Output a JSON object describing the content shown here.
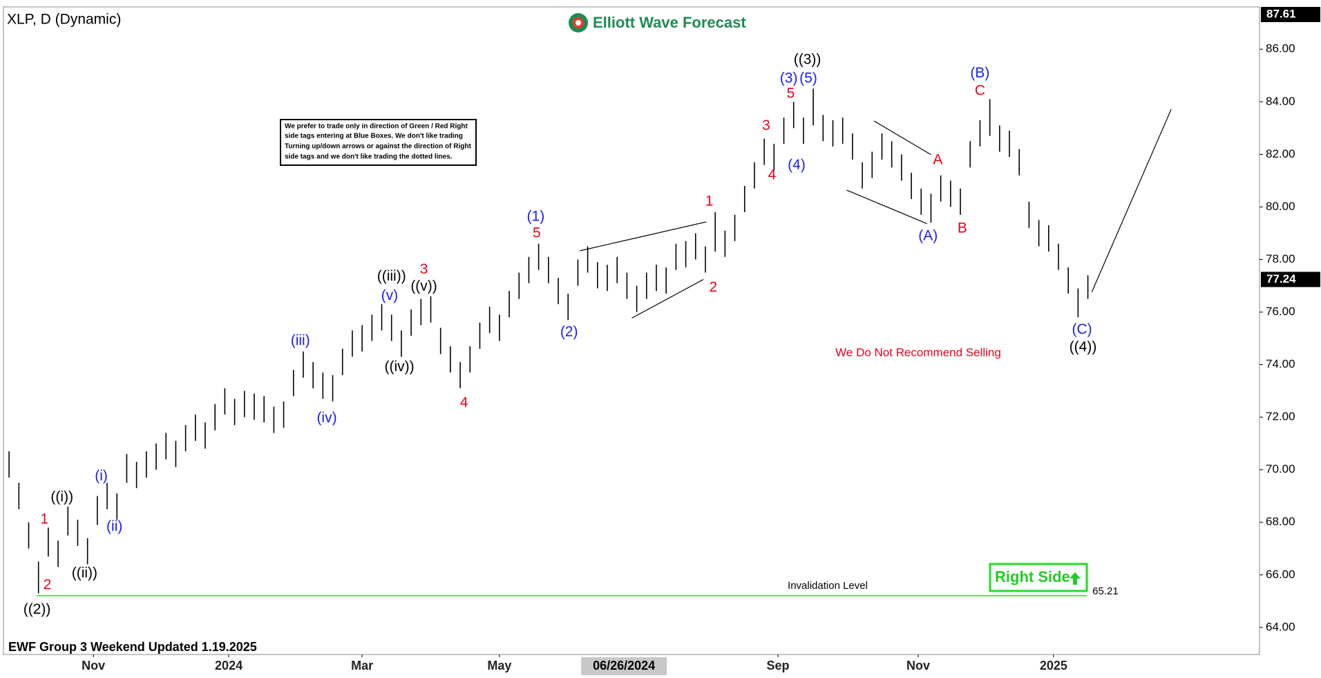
{
  "chart_data": {
    "type": "ohlc",
    "title": "XLP, D (Dynamic)",
    "brand": "Elliott Wave Forecast",
    "footer": "EWF Group 3 Weekend Updated 1.19.2025",
    "note": [
      "We prefer to trade only in direction of Green / Red Right",
      "side tags entering at Blue Boxes. We don't like trading",
      "Turning up/down arrows or against the direction of Right",
      "side tags and we don't like trading the dotted lines."
    ],
    "warning": "We Do Not Recommend Selling",
    "right_side": "Right Side",
    "bar_color": "#000000",
    "highs": [
      70.7,
      69.5,
      68,
      66.5,
      67.8,
      67.3,
      68.6,
      68.1,
      67.4,
      69,
      69.5,
      69.1,
      70.6,
      70.3,
      70.7,
      71,
      71.4,
      71.1,
      71.7,
      72.1,
      71.8,
      72.5,
      73.1,
      72.7,
      73,
      72.9,
      72.8,
      72.4,
      72.6,
      73.8,
      74.5,
      74.1,
      73.7,
      73.6,
      74.6,
      75.3,
      75.5,
      75.9,
      76.3,
      75.9,
      75.3,
      76.1,
      76.5,
      76.6,
      75.4,
      74.7,
      74.1,
      74.7,
      75.6,
      76.2,
      75.9,
      76.8,
      77.5,
      78.1,
      78.6,
      78.1,
      77.3,
      76.7,
      78,
      78.5,
      77.9,
      77.8,
      78.1,
      77.5,
      77,
      77.5,
      77.8,
      77.7,
      78.6,
      78.7,
      79,
      78.5,
      79.8,
      79.1,
      79.7,
      80.8,
      81.7,
      82.6,
      82.4,
      83.4,
      84,
      83.4,
      84.5,
      83.5,
      83.3,
      83.4,
      82.8,
      81.7,
      82.1,
      82.8,
      82.5,
      82,
      81.3,
      80.7,
      80.5,
      81.2,
      81,
      80.7,
      82.5,
      83.3,
      84.1,
      83.1,
      82.9,
      82.2,
      80.2,
      79.5,
      79.3,
      78.6,
      77.7,
      76.9,
      77.4
    ],
    "lows": [
      69.7,
      68.5,
      67,
      65.3,
      66.7,
      66.3,
      67.5,
      67.1,
      66.4,
      67.9,
      68.5,
      68.1,
      69.5,
      69.3,
      69.7,
      70,
      70.4,
      70.1,
      70.7,
      71.1,
      70.8,
      71.5,
      72.1,
      71.7,
      72,
      71.9,
      71.8,
      71.4,
      71.6,
      72.8,
      73.5,
      73.1,
      72.7,
      72.6,
      73.6,
      74.3,
      74.5,
      74.9,
      75.3,
      74.9,
      74.3,
      75.1,
      75.5,
      75.6,
      74.4,
      73.7,
      73.1,
      73.7,
      74.6,
      75.2,
      74.9,
      75.8,
      76.5,
      77.1,
      77.6,
      77.1,
      76.3,
      75.7,
      77,
      77.5,
      76.9,
      76.8,
      77.1,
      76.5,
      76,
      76.5,
      76.8,
      76.7,
      77.6,
      77.7,
      78,
      77.5,
      78.3,
      78.1,
      78.7,
      79.8,
      80.7,
      81.6,
      81.4,
      82.4,
      83,
      82.4,
      83.1,
      82.5,
      82.3,
      82.4,
      81.8,
      80.7,
      81.1,
      81.8,
      81.5,
      81,
      80.3,
      79.7,
      79.4,
      80.2,
      80,
      79.7,
      81.5,
      82.3,
      82.7,
      82.1,
      81.9,
      81.2,
      79.2,
      78.5,
      78.3,
      77.6,
      76.7,
      75.8,
      76.5
    ],
    "last_price": 77.24,
    "xlim": [
      0,
      128
    ],
    "ylim": [
      62.97,
      87.61
    ],
    "yticks": [
      {
        "value": 64,
        "label": "64.00"
      },
      {
        "value": 66,
        "label": "66.00"
      },
      {
        "value": 68,
        "label": "68.00"
      },
      {
        "value": 70,
        "label": "70.00"
      },
      {
        "value": 72,
        "label": "72.00"
      },
      {
        "value": 74,
        "label": "74.00"
      },
      {
        "value": 76,
        "label": "76.00"
      },
      {
        "value": 78,
        "label": "78.00"
      },
      {
        "value": 80,
        "label": "80.00"
      },
      {
        "value": 82,
        "label": "82.00"
      },
      {
        "value": 84,
        "label": "84.00"
      },
      {
        "value": 86,
        "label": "86.00"
      }
    ],
    "xticks": [
      {
        "value": 9.1,
        "label": "Nov"
      },
      {
        "value": 22.9,
        "label": "2024"
      },
      {
        "value": 36.5,
        "label": "Mar"
      },
      {
        "value": 50.5,
        "label": "May"
      },
      {
        "value": 78.9,
        "label": "Sep"
      },
      {
        "value": 93.2,
        "label": "Nov"
      },
      {
        "value": 107,
        "label": "2025"
      }
    ],
    "cursor_date": {
      "value": 63.2,
      "label": "06/26/2024"
    },
    "invalidation": {
      "label": "Invalidation Level",
      "value": 65.21,
      "xrange": [
        3.3,
        110.4
      ],
      "color": "#33cc33"
    },
    "trendlines": [
      {
        "x": [
          58.7,
          71.6
        ],
        "y": [
          78.33,
          79.43
        ]
      },
      {
        "x": [
          64,
          71.3
        ],
        "y": [
          75.77,
          77.24
        ]
      },
      {
        "x": [
          88.7,
          94.5
        ],
        "y": [
          83.27,
          81.99
        ]
      },
      {
        "x": [
          85.9,
          94.1
        ],
        "y": [
          80.64,
          79.36
        ]
      },
      {
        "x": [
          110.9,
          119
        ],
        "y": [
          76.76,
          83.72
        ]
      }
    ],
    "annotations": [
      {
        "text": "((2))",
        "x": 3.35,
        "y": 64.67,
        "color": "#000000"
      },
      {
        "text": "1",
        "x": 4.1,
        "y": 68.1,
        "color": "#e8001c"
      },
      {
        "text": "2",
        "x": 4.4,
        "y": 65.6,
        "color": "#e8001c"
      },
      {
        "text": "((i))",
        "x": 5.9,
        "y": 68.94,
        "color": "#000000"
      },
      {
        "text": "((ii))",
        "x": 8.2,
        "y": 66.05,
        "color": "#000000"
      },
      {
        "text": "(i)",
        "x": 9.9,
        "y": 69.74,
        "color": "#1a1aff"
      },
      {
        "text": "(ii)",
        "x": 11.25,
        "y": 67.82,
        "color": "#1a1aff"
      },
      {
        "text": "(iii)",
        "x": 30.2,
        "y": 74.9,
        "color": "#1a1aff"
      },
      {
        "text": "(iv)",
        "x": 32.9,
        "y": 71.95,
        "color": "#1a1aff"
      },
      {
        "text": "((iii))",
        "x": 39.5,
        "y": 77.34,
        "color": "#000000"
      },
      {
        "text": "(v)",
        "x": 39.3,
        "y": 76.6,
        "color": "#1a1aff"
      },
      {
        "text": "3",
        "x": 42.8,
        "y": 77.6,
        "color": "#e8001c"
      },
      {
        "text": "((v))",
        "x": 42.8,
        "y": 76.96,
        "color": "#000000"
      },
      {
        "text": "((iv))",
        "x": 40.3,
        "y": 73.9,
        "color": "#000000"
      },
      {
        "text": "4",
        "x": 46.9,
        "y": 72.53,
        "color": "#e8001c"
      },
      {
        "text": "(1)",
        "x": 54.2,
        "y": 79.62,
        "color": "#1a1aff"
      },
      {
        "text": "5",
        "x": 54.3,
        "y": 78.98,
        "color": "#e8001c"
      },
      {
        "text": "(2)",
        "x": 57.6,
        "y": 75.22,
        "color": "#1a1aff"
      },
      {
        "text": "1",
        "x": 71.9,
        "y": 80.2,
        "color": "#e8001c"
      },
      {
        "text": "2",
        "x": 72.3,
        "y": 76.92,
        "color": "#e8001c"
      },
      {
        "text": "3",
        "x": 77.7,
        "y": 83.08,
        "color": "#e8001c"
      },
      {
        "text": "4",
        "x": 78.3,
        "y": 81.19,
        "color": "#e8001c"
      },
      {
        "text": "5",
        "x": 80.2,
        "y": 84.3,
        "color": "#e8001c"
      },
      {
        "text": "(3)",
        "x": 80,
        "y": 84.88,
        "color": "#1a1aff"
      },
      {
        "text": "(5)",
        "x": 82,
        "y": 84.88,
        "color": "#1a1aff"
      },
      {
        "text": "((3))",
        "x": 81.9,
        "y": 85.58,
        "color": "#000000"
      },
      {
        "text": "(4)",
        "x": 80.8,
        "y": 81.57,
        "color": "#1a1aff"
      },
      {
        "text": "A",
        "x": 95.2,
        "y": 81.77,
        "color": "#e8001c"
      },
      {
        "text": "(A)",
        "x": 94.2,
        "y": 78.88,
        "color": "#1a1aff"
      },
      {
        "text": "B",
        "x": 97.7,
        "y": 79.17,
        "color": "#e8001c"
      },
      {
        "text": "C",
        "x": 99.5,
        "y": 84.4,
        "color": "#e8001c"
      },
      {
        "text": "(B)",
        "x": 99.5,
        "y": 85.07,
        "color": "#1a1aff"
      },
      {
        "text": "(C)",
        "x": 109.9,
        "y": 75.32,
        "color": "#1a1aff"
      },
      {
        "text": "((4))",
        "x": 110,
        "y": 74.65,
        "color": "#000000"
      }
    ]
  }
}
